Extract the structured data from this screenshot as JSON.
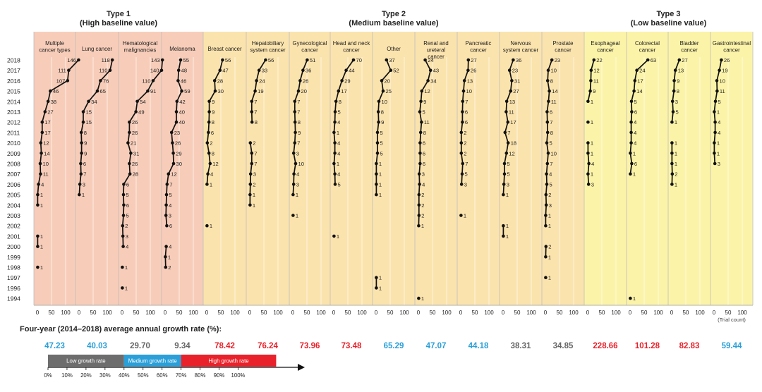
{
  "chart_data": {
    "type": "line",
    "x_axis_unit": "(Trial count)",
    "x_ticks": [
      0,
      50,
      100
    ],
    "years": [
      "2018",
      "2017",
      "2016",
      "2015",
      "2014",
      "2013",
      "2012",
      "2011",
      "2010",
      "2009",
      "2008",
      "2007",
      "2006",
      "2005",
      "2004",
      "2003",
      "2002",
      "2001",
      "2000",
      "1999",
      "1998",
      "1997",
      "1996",
      "1994"
    ],
    "groups": [
      {
        "title": "Type 1",
        "subtitle": "(High baseline value)",
        "color": "#f7cdb9"
      },
      {
        "title": "Type 2",
        "subtitle": "(Medium baseline value)",
        "color": "#fbe3ad"
      },
      {
        "title": "Type 3",
        "subtitle": "(Low baseline value)",
        "color": "#fbf3a8"
      }
    ],
    "panels": [
      {
        "name": "Multiple cancer types",
        "group": 0,
        "values": [
          146,
          111,
          107,
          46,
          38,
          27,
          17,
          17,
          12,
          14,
          10,
          11,
          4,
          1,
          1,
          null,
          null,
          1,
          1,
          null,
          1,
          null,
          null,
          null
        ],
        "rate": "47.23",
        "rate_color": "#2a9fd8"
      },
      {
        "name": "Lung cancer",
        "group": 0,
        "values": [
          118,
          110,
          76,
          65,
          34,
          15,
          15,
          8,
          9,
          9,
          6,
          7,
          3,
          1,
          null,
          null,
          null,
          null,
          null,
          null,
          null,
          null,
          null,
          null
        ],
        "rate": "40.03",
        "rate_color": "#2a9fd8"
      },
      {
        "name": "Hematological malignancies",
        "group": 0,
        "values": [
          143,
          140,
          110,
          91,
          54,
          49,
          26,
          26,
          21,
          31,
          26,
          28,
          6,
          5,
          6,
          5,
          2,
          3,
          4,
          null,
          1,
          null,
          1,
          null
        ],
        "rate": "29.70",
        "rate_color": "#666666"
      },
      {
        "name": "Melanoma",
        "group": 0,
        "values": [
          55,
          48,
          46,
          59,
          42,
          40,
          40,
          23,
          26,
          29,
          30,
          12,
          7,
          5,
          4,
          3,
          6,
          null,
          4,
          1,
          2,
          null,
          null,
          null
        ],
        "rate": "9.34",
        "rate_color": "#666666"
      },
      {
        "name": "Breast cancer",
        "group": 1,
        "values": [
          56,
          47,
          28,
          30,
          9,
          9,
          8,
          6,
          2,
          8,
          12,
          4,
          1,
          null,
          null,
          null,
          1,
          null,
          null,
          null,
          null,
          null,
          null,
          null
        ],
        "rate": "78.42",
        "rate_color": "#e8212a"
      },
      {
        "name": "Hepatobiliary system cancer",
        "group": 1,
        "values": [
          56,
          33,
          24,
          19,
          7,
          7,
          8,
          null,
          2,
          7,
          7,
          3,
          2,
          1,
          1,
          null,
          null,
          null,
          null,
          null,
          null,
          null,
          null,
          null
        ],
        "rate": "76.24",
        "rate_color": "#e8212a"
      },
      {
        "name": "Gynecological cancer",
        "group": 1,
        "values": [
          51,
          36,
          26,
          20,
          7,
          7,
          8,
          9,
          7,
          3,
          10,
          4,
          3,
          1,
          null,
          1,
          null,
          null,
          null,
          null,
          null,
          null,
          null,
          null
        ],
        "rate": "73.96",
        "rate_color": "#e8212a"
      },
      {
        "name": "Head and neck cancer",
        "group": 1,
        "values": [
          70,
          44,
          29,
          17,
          8,
          5,
          4,
          1,
          4,
          4,
          1,
          4,
          5,
          null,
          null,
          null,
          null,
          1,
          null,
          null,
          null,
          null,
          null,
          null
        ],
        "rate": "73.48",
        "rate_color": "#e8212a"
      },
      {
        "name": "Other",
        "group": 1,
        "values": [
          37,
          52,
          20,
          25,
          10,
          8,
          9,
          5,
          5,
          5,
          1,
          1,
          1,
          1,
          null,
          null,
          null,
          null,
          null,
          null,
          null,
          1,
          1,
          null
        ],
        "rate": "65.29",
        "rate_color": "#2a9fd8"
      },
      {
        "name": "Renal and ureteral cancer",
        "group": 1,
        "values": [
          24,
          43,
          34,
          12,
          9,
          5,
          11,
          8,
          6,
          6,
          6,
          3,
          4,
          2,
          2,
          2,
          1,
          null,
          null,
          null,
          null,
          null,
          null,
          1
        ],
        "rate": "47.07",
        "rate_color": "#2a9fd8"
      },
      {
        "name": "Pancreatic cancer",
        "group": 1,
        "values": [
          27,
          26,
          13,
          10,
          7,
          6,
          6,
          2,
          2,
          2,
          7,
          5,
          3,
          null,
          null,
          1,
          null,
          null,
          null,
          null,
          null,
          null,
          null,
          null
        ],
        "rate": "44.18",
        "rate_color": "#2a9fd8"
      },
      {
        "name": "Nervous system cancer",
        "group": 1,
        "values": [
          36,
          23,
          31,
          27,
          13,
          11,
          17,
          7,
          18,
          12,
          5,
          5,
          3,
          1,
          null,
          null,
          1,
          1,
          null,
          null,
          null,
          null,
          null,
          null
        ],
        "rate": "38.31",
        "rate_color": "#666666"
      },
      {
        "name": "Prostate cancer",
        "group": 1,
        "values": [
          23,
          10,
          8,
          14,
          11,
          6,
          7,
          8,
          5,
          10,
          7,
          4,
          5,
          2,
          3,
          1,
          1,
          null,
          2,
          1,
          null,
          1,
          null,
          null
        ],
        "rate": "34.85",
        "rate_color": "#666666"
      },
      {
        "name": "Esophageal cancer",
        "group": 2,
        "values": [
          22,
          12,
          11,
          9,
          1,
          null,
          1,
          null,
          1,
          1,
          4,
          1,
          3,
          null,
          null,
          null,
          null,
          null,
          null,
          null,
          null,
          null,
          null,
          null
        ],
        "rate": "228.66",
        "rate_color": "#e8212a"
      },
      {
        "name": "Colorectal cancer",
        "group": 2,
        "values": [
          63,
          24,
          17,
          14,
          5,
          6,
          4,
          4,
          4,
          1,
          6,
          1,
          null,
          null,
          null,
          null,
          null,
          null,
          null,
          null,
          null,
          null,
          null,
          1
        ],
        "rate": "101.28",
        "rate_color": "#e8212a"
      },
      {
        "name": "Bladder cancer",
        "group": 2,
        "values": [
          27,
          13,
          9,
          8,
          3,
          5,
          1,
          null,
          1,
          1,
          1,
          2,
          1,
          null,
          null,
          null,
          null,
          null,
          null,
          null,
          null,
          null,
          null,
          null
        ],
        "rate": "82.83",
        "rate_color": "#e8212a"
      },
      {
        "name": "Gastrointestinal cancer",
        "group": 2,
        "values": [
          26,
          19,
          10,
          11,
          5,
          1,
          4,
          4,
          1,
          1,
          3,
          null,
          null,
          null,
          null,
          null,
          null,
          null,
          null,
          null,
          null,
          null,
          null,
          null
        ],
        "rate": "59.44",
        "rate_color": "#2a9fd8"
      }
    ]
  },
  "growth_section": {
    "title": "Four-year (2014–2018) average annual growth rate (%):",
    "scale": [
      {
        "label": "Low growth rate",
        "from": 0,
        "to": 40,
        "color": "#6d6d6d"
      },
      {
        "label": "Medium growth rate",
        "from": 40,
        "to": 70,
        "color": "#2a9fd8"
      },
      {
        "label": "High growth rate",
        "from": 70,
        "to": 120,
        "color": "#e8212a"
      }
    ],
    "scale_ticks": [
      "0%",
      "10%",
      "20%",
      "30%",
      "40%",
      "50%",
      "60%",
      "70%",
      "80%",
      "90%",
      "100%"
    ]
  }
}
